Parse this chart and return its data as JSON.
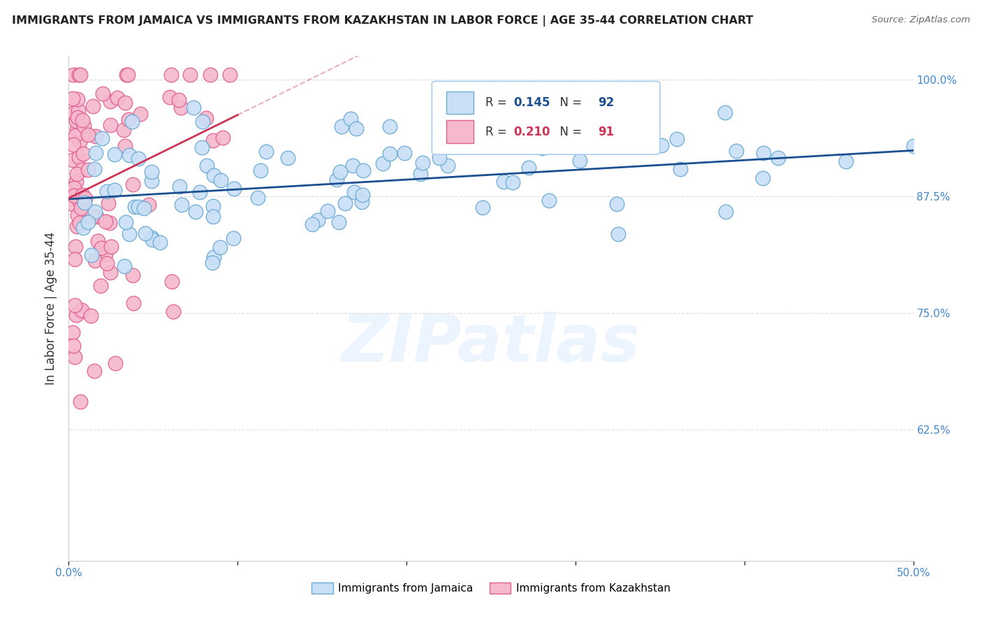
{
  "title": "IMMIGRANTS FROM JAMAICA VS IMMIGRANTS FROM KAZAKHSTAN IN LABOR FORCE | AGE 35-44 CORRELATION CHART",
  "source": "Source: ZipAtlas.com",
  "ylabel_label": "In Labor Force | Age 35-44",
  "legend_jamaica": "Immigrants from Jamaica",
  "legend_kazakhstan": "Immigrants from Kazakhstan",
  "r_jamaica": "0.145",
  "n_jamaica": "92",
  "r_kazakhstan": "0.210",
  "n_kazakhstan": "91",
  "color_jamaica_face": "#c8dff5",
  "color_jamaica_edge": "#6aaad4",
  "color_kazakhstan_face": "#f5b8cc",
  "color_kazakhstan_edge": "#e06090",
  "line_color_jamaica": "#1a4f90",
  "line_color_kazakhstan": "#cc3355",
  "watermark": "ZIPatlas",
  "xmin": 0.0,
  "xmax": 0.5,
  "ymin": 0.485,
  "ymax": 1.025,
  "yticks": [
    1.0,
    0.875,
    0.75,
    0.625
  ],
  "ytick_labels": [
    "100.0%",
    "87.5%",
    "75.0%",
    "62.5%"
  ],
  "xticks": [
    0.0,
    0.1,
    0.2,
    0.3,
    0.4,
    0.5
  ],
  "xtick_labels": [
    "0.0%",
    "",
    "",
    "",
    "",
    "50.0%"
  ],
  "tick_color": "#4488cc",
  "grid_color": "#dddddd",
  "jam_line_x0": 0.0,
  "jam_line_x1": 0.5,
  "jam_line_y0": 0.872,
  "jam_line_y1": 0.924,
  "kaz_line_x0": 0.0,
  "kaz_line_x1": 0.1,
  "kaz_line_y0": 0.873,
  "kaz_line_y1": 0.962
}
